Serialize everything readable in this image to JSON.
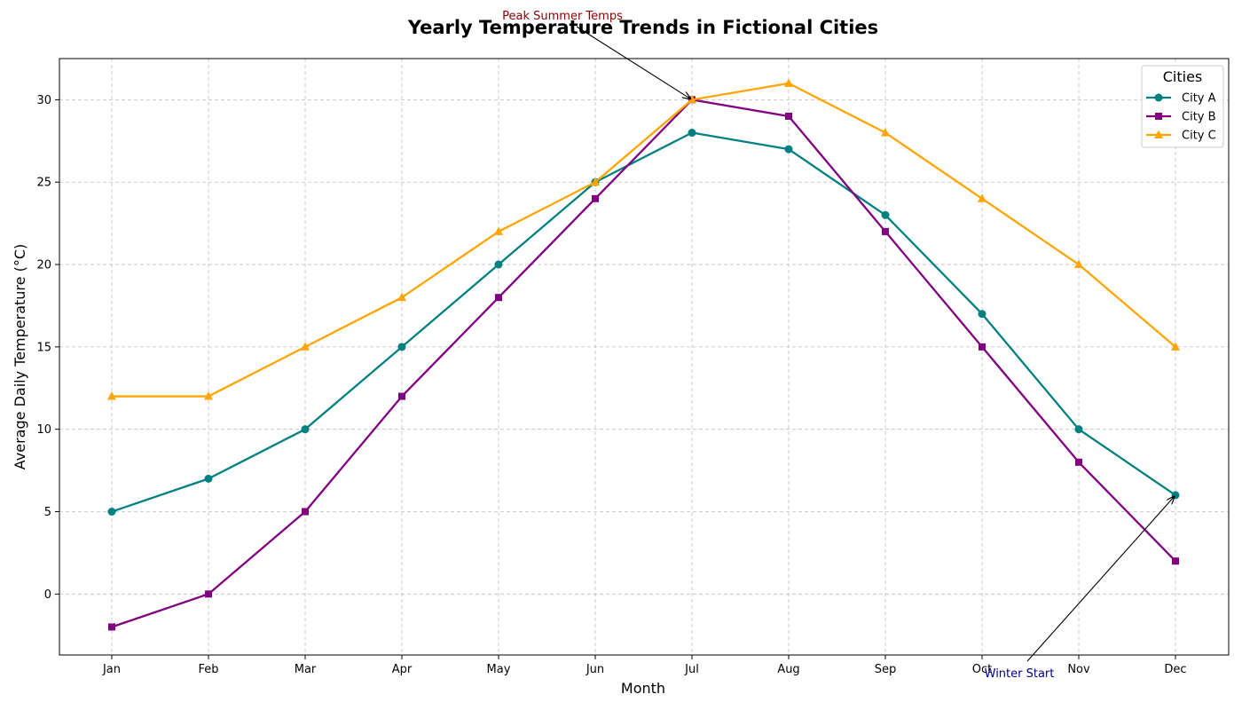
{
  "chart_data": {
    "type": "line",
    "title": "Yearly Temperature Trends in Fictional Cities",
    "xlabel": "Month",
    "ylabel": "Average Daily Temperature (°C)",
    "categories": [
      "Jan",
      "Feb",
      "Mar",
      "Apr",
      "May",
      "Jun",
      "Jul",
      "Aug",
      "Sep",
      "Oct",
      "Nov",
      "Dec"
    ],
    "ylim": [
      -3.7,
      32.5
    ],
    "yticks": [
      0,
      5,
      10,
      15,
      20,
      25,
      30
    ],
    "grid": true,
    "legend": {
      "title": "Cities",
      "placement": "top-right"
    },
    "series": [
      {
        "name": "City A",
        "color": "#008080",
        "marker": "circle",
        "values": [
          5,
          7,
          10,
          15,
          20,
          25,
          28,
          27,
          23,
          17,
          10,
          6
        ]
      },
      {
        "name": "City B",
        "color": "#800080",
        "marker": "square",
        "values": [
          -2,
          0,
          5,
          12,
          18,
          24,
          30,
          29,
          22,
          15,
          8,
          2
        ]
      },
      {
        "name": "City C",
        "color": "#FFA500",
        "marker": "triangle",
        "values": [
          12,
          12,
          15,
          18,
          22,
          25,
          30,
          31,
          28,
          24,
          20,
          15
        ]
      }
    ],
    "annotations": [
      {
        "text": "Peak Summer Temps",
        "color": "#8B0000",
        "target_category": "Jul",
        "target_value": 30
      },
      {
        "text": "Winter Start",
        "color": "#00008B",
        "target_category": "Dec",
        "target_value": 6
      }
    ]
  }
}
